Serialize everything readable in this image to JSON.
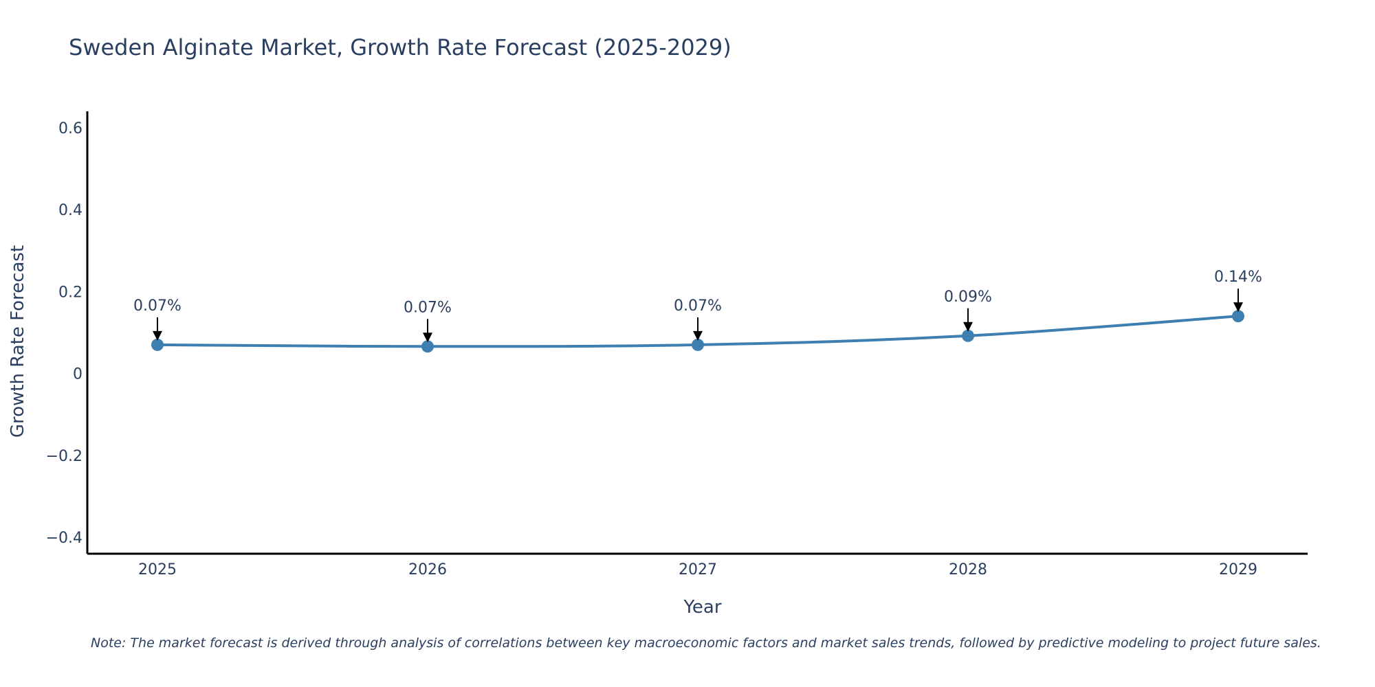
{
  "chart_data": {
    "type": "line",
    "title": "Sweden Alginate Market, Growth Rate Forecast (2025-2029)",
    "xlabel": "Year",
    "ylabel": "Growth Rate Forecast",
    "categories": [
      "2025",
      "2026",
      "2027",
      "2028",
      "2029"
    ],
    "series": [
      {
        "name": "Growth Rate Forecast",
        "values": [
          0.07,
          0.066,
          0.07,
          0.092,
          0.14
        ],
        "labels": [
          "0.07%",
          "0.07%",
          "0.07%",
          "0.09%",
          "0.14%"
        ]
      }
    ],
    "ylim": [
      -0.44,
      0.64
    ],
    "yticks": [
      -0.4,
      -0.2,
      0,
      0.2,
      0.4,
      0.6
    ],
    "ytick_labels": [
      "−0.4",
      "−0.2",
      "0",
      "0.2",
      "0.4",
      "0.6"
    ],
    "grid": false,
    "line_color": "#3d7fb0",
    "note": "Note: The market forecast is derived through analysis of correlations between key macroeconomic factors and market sales trends, followed by predictive modeling to project future sales."
  }
}
